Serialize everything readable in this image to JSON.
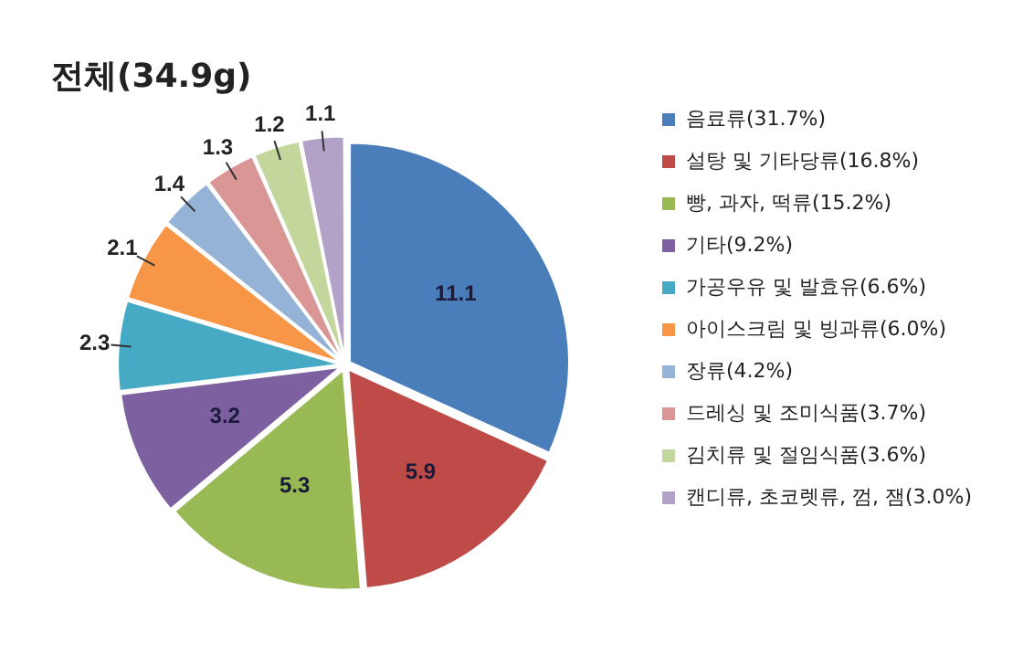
{
  "chart_data": {
    "type": "pie",
    "title": "전체(34.9g)",
    "categories": [
      "음료류(31.7%)",
      "설탕 및 기타당류(16.8%)",
      "빵, 과자, 떡류(15.2%)",
      "기타(9.2%)",
      "가공우유 및 발효유(6.6%)",
      "아이스크림 및 빙과류(6.0%)",
      "장류(4.2%)",
      "드레싱 및 조미식품(3.7%)",
      "김치류 및 절임식품(3.6%)",
      "캔디류, 초코렛류, 껌, 잼(3.0%)"
    ],
    "values": [
      11.1,
      5.9,
      5.3,
      3.2,
      2.3,
      2.1,
      1.4,
      1.3,
      1.2,
      1.1
    ],
    "colors": [
      "#4a7ebb",
      "#be4b48",
      "#98b954",
      "#7d60a0",
      "#46aac5",
      "#f79646",
      "#95b3d7",
      "#da9694",
      "#c3d69b",
      "#b3a2c7"
    ],
    "data_labels": true,
    "legend": "right"
  }
}
